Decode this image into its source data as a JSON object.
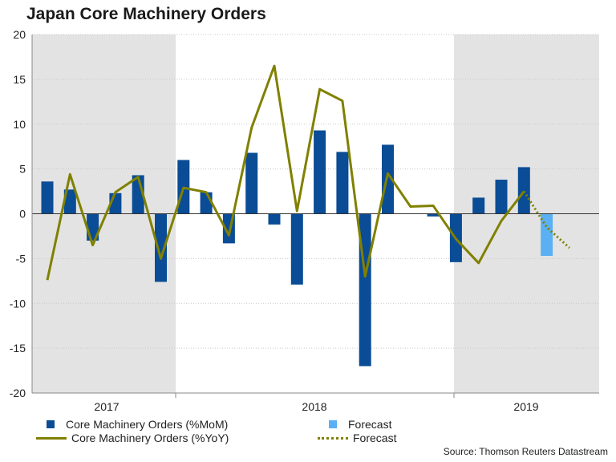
{
  "title": "Japan Core Machinery Orders",
  "colors": {
    "mom": "#0a4c95",
    "forecast_bar": "#5ab0f3",
    "yoy": "#808000",
    "shade": "#e3e3e3",
    "grid": "#c8c8c8",
    "zero": "#333333",
    "axis": "#888888"
  },
  "legend": {
    "mom": "Core Machinery Orders (%MoM)",
    "yoy": "Core Machinery Orders (%YoY)",
    "forecast_bar": "Forecast",
    "forecast_line": "Forecast"
  },
  "source": "Source: Thomson Reuters Datastream",
  "chart_data": {
    "type": "bar+line",
    "title": "Japan Core Machinery Orders",
    "xlabel": "",
    "ylabel": "",
    "ylim": [
      -20,
      20
    ],
    "yticks": [
      20,
      15,
      10,
      5,
      0,
      -5,
      -10,
      -15,
      -20
    ],
    "year_labels": [
      "2017",
      "2018",
      "2019"
    ],
    "shaded_years": [
      "2017",
      "2019"
    ],
    "grid": true,
    "points": 24,
    "series": [
      {
        "name": "Core Machinery Orders (%MoM)",
        "type": "bar",
        "values": [
          3.6,
          2.7,
          -3.0,
          2.3,
          4.3,
          -7.6,
          6.0,
          2.4,
          -3.3,
          6.8,
          -1.2,
          -7.9,
          9.3,
          6.9,
          -17.0,
          7.7,
          0,
          -0.3,
          -5.4,
          1.8,
          3.8,
          5.2,
          null,
          null
        ]
      },
      {
        "name": "Forecast",
        "type": "bar",
        "values": [
          null,
          null,
          null,
          null,
          null,
          null,
          null,
          null,
          null,
          null,
          null,
          null,
          null,
          null,
          null,
          null,
          null,
          null,
          null,
          null,
          null,
          null,
          -4.7,
          null
        ]
      },
      {
        "name": "Core Machinery Orders (%YoY)",
        "type": "line",
        "values": [
          -7.4,
          4.4,
          -3.5,
          2.4,
          4.1,
          -5.0,
          2.9,
          2.4,
          -2.4,
          9.6,
          16.5,
          0.3,
          13.9,
          12.6,
          -7.0,
          4.5,
          0.8,
          0.9,
          -2.8,
          -5.5,
          -0.8,
          2.5,
          null,
          null
        ]
      },
      {
        "name": "Forecast",
        "type": "line",
        "style": "dotted",
        "values": [
          null,
          null,
          null,
          null,
          null,
          null,
          null,
          null,
          null,
          null,
          null,
          null,
          null,
          null,
          null,
          null,
          null,
          null,
          null,
          null,
          null,
          2.5,
          -1.5,
          -3.8
        ]
      }
    ]
  }
}
